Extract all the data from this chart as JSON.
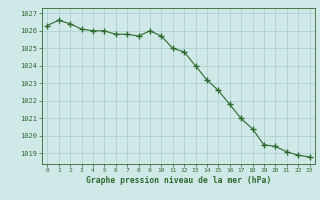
{
  "hours": [
    0,
    1,
    2,
    3,
    4,
    5,
    6,
    7,
    8,
    9,
    10,
    11,
    12,
    13,
    14,
    15,
    16,
    17,
    18,
    19,
    20,
    21,
    22,
    23
  ],
  "pressure": [
    1026.3,
    1026.6,
    1026.4,
    1026.1,
    1026.0,
    1026.0,
    1025.8,
    1025.8,
    1025.7,
    1026.0,
    1025.7,
    1025.0,
    1024.8,
    1024.0,
    1023.2,
    1022.6,
    1021.8,
    1021.0,
    1020.4,
    1019.5,
    1019.4,
    1019.1,
    1018.9,
    1018.8
  ],
  "line_color": "#2d6a2d",
  "marker_color": "#2d6a2d",
  "bg_color": "#d0e8e8",
  "grid_color": "#aacece",
  "xlabel": "Graphe pression niveau de la mer (hPa)",
  "xlabel_color": "#2d6a2d",
  "tick_color": "#2d6a2d",
  "ylabel_ticks": [
    1019,
    1020,
    1021,
    1022,
    1023,
    1024,
    1025,
    1026,
    1027
  ],
  "ylim": [
    1018.4,
    1027.3
  ],
  "xlim": [
    -0.5,
    23.5
  ]
}
